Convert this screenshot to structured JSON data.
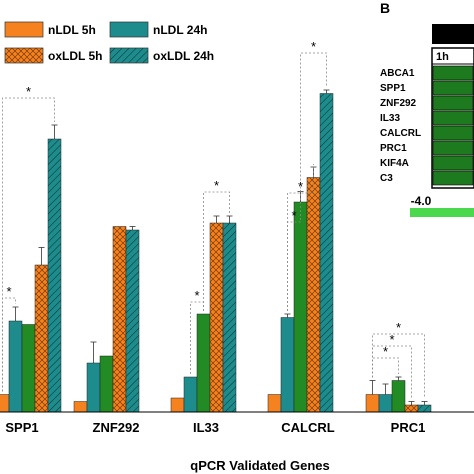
{
  "chart_data": {
    "type": "bar",
    "xlabel": "qPCR Validated Genes",
    "ylabel": "",
    "ylim": [
      0,
      100
    ],
    "categories": [
      "SPP1",
      "ZNF292",
      "IL33",
      "CALCRL",
      "PRC1"
    ],
    "series": [
      {
        "name": "nLDL 5h",
        "color": "#f5821f",
        "pattern": "solid",
        "values": [
          5,
          3,
          4,
          5,
          5
        ],
        "errors": [
          0,
          0,
          0,
          0,
          4
        ]
      },
      {
        "name": "nLDL 24h",
        "color": "#1e8c8c",
        "pattern": "solid",
        "values": [
          26,
          14,
          10,
          27,
          5
        ],
        "errors": [
          4,
          6,
          0,
          1,
          3
        ]
      },
      {
        "name": "oxLDL 5h",
        "color": "#f5821f",
        "pattern": "hatched",
        "values": [
          42,
          53,
          54,
          67,
          2
        ],
        "errors": [
          5,
          0,
          2,
          3,
          1
        ]
      },
      {
        "name": "oxLDL 24h",
        "color": "#1e8c8c",
        "pattern": "hatched",
        "values": [
          78,
          52,
          54,
          91,
          2
        ],
        "errors": [
          4,
          1,
          2,
          1,
          1
        ]
      }
    ],
    "extra_series_color": "#238b23",
    "extra_bars": [
      {
        "category": "SPP1",
        "value": 25,
        "error": 0
      },
      {
        "category": "ZNF292",
        "value": 16,
        "error": 0
      },
      {
        "category": "IL33",
        "value": 28,
        "error": 0
      },
      {
        "category": "CALCRL",
        "value": 60,
        "error": 3
      },
      {
        "category": "PRC1",
        "value": 9,
        "error": 1
      }
    ],
    "significance_marker": "*"
  },
  "legend": {
    "items": [
      {
        "label": "nLDL 5h",
        "color": "#f5821f",
        "pattern": "solid"
      },
      {
        "label": "nLDL 24h",
        "color": "#1e8c8c",
        "pattern": "solid"
      },
      {
        "label": "oxLDL 5h",
        "color": "#f5821f",
        "pattern": "hatched"
      },
      {
        "label": "oxLDL 24h",
        "color": "#1e8c8c",
        "pattern": "hatched"
      }
    ]
  },
  "panel_b": {
    "label": "B",
    "column_label": "1h",
    "genes": [
      "ABCA1",
      "SPP1",
      "ZNF292",
      "IL33",
      "CALCRL",
      "PRC1",
      "KIF4A",
      "C3"
    ],
    "scale_min": "-4.0",
    "cell_color": "#1e7a1e",
    "scale_color": "#4cd84c"
  }
}
